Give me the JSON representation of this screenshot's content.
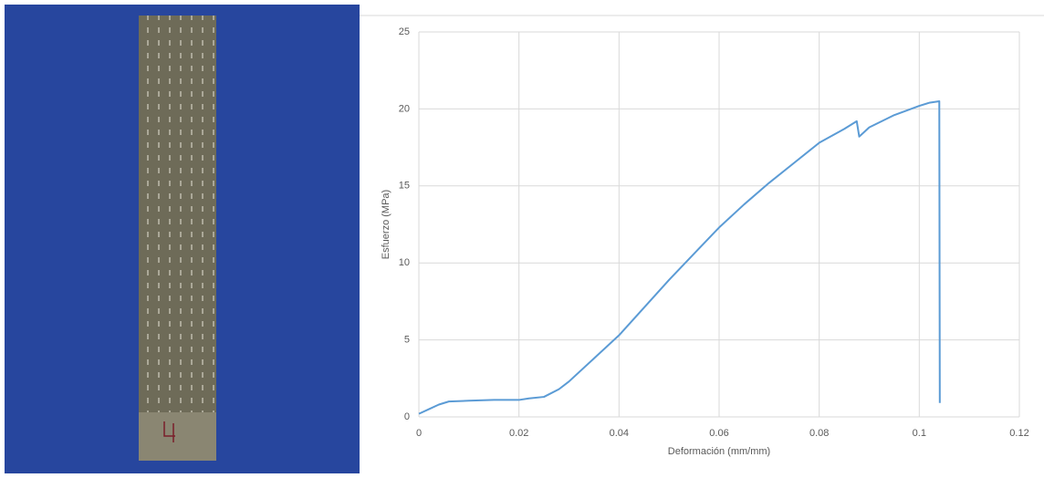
{
  "chart_data": {
    "type": "line",
    "x_label": "Deformación (mm/mm)",
    "y_label": "Esfuerzo (MPa)",
    "x": [
      0,
      0.002,
      0.004,
      0.006,
      0.01,
      0.015,
      0.02,
      0.022,
      0.025,
      0.028,
      0.03,
      0.035,
      0.04,
      0.045,
      0.05,
      0.055,
      0.06,
      0.065,
      0.07,
      0.075,
      0.08,
      0.085,
      0.0875,
      0.088,
      0.09,
      0.095,
      0.1,
      0.102,
      0.104,
      0.1041
    ],
    "series": [
      {
        "name": "Esfuerzo",
        "color": "#5b9bd5",
        "values": [
          0.2,
          0.5,
          0.8,
          1.0,
          1.05,
          1.1,
          1.1,
          1.2,
          1.3,
          1.8,
          2.3,
          3.8,
          5.3,
          7.1,
          8.9,
          10.6,
          12.3,
          13.8,
          15.2,
          16.5,
          17.8,
          18.7,
          19.2,
          18.2,
          18.8,
          19.6,
          20.2,
          20.4,
          20.5,
          0.9
        ]
      }
    ],
    "xlim": [
      0,
      0.12
    ],
    "xticks": [
      0,
      0.02,
      0.04,
      0.06,
      0.08,
      0.1,
      0.12
    ],
    "ylim": [
      0,
      25
    ],
    "yticks": [
      0,
      5,
      10,
      15,
      20,
      25
    ],
    "grid": true
  }
}
